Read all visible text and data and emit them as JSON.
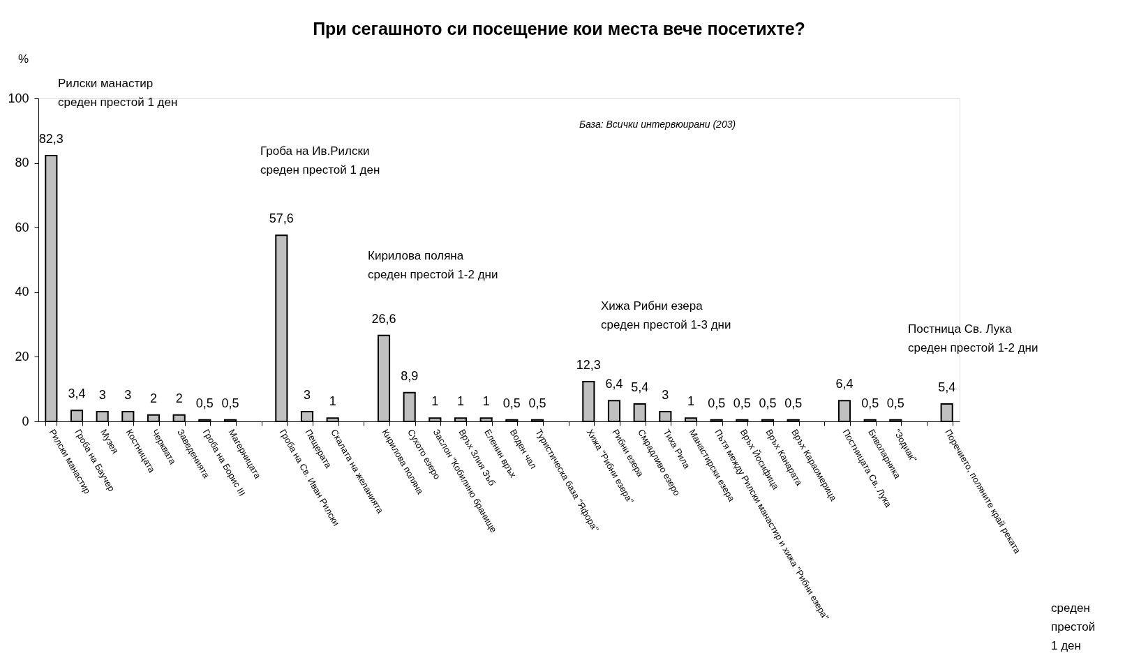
{
  "chart_data": {
    "type": "bar",
    "title": "При сегашното си посещение кои места вече посетихте?",
    "ylabel": "%",
    "categories": [
      "Рилски манастир",
      "Гроба на Баучер",
      "Музея",
      "Костницата",
      "Черквата",
      "Заведенията",
      "Гроба на Борис III",
      "Магерницата",
      null,
      "Гроба на Св. Иван Рилски",
      "Пещерата",
      "Скалата на желанията",
      null,
      "Кирилова поляна",
      "Сухото езеро",
      "Заслон \"Кобилино бранище",
      "Връх Злия Зъб",
      "Еленин връх",
      "Воден чал",
      "Туристическа база \"Яфора\"",
      null,
      "Хижа \"Рибни езера\"",
      "Рибни езера",
      "Смрадливо езеро",
      "Тиха Рила",
      "Манастирски езера",
      "Пътя между Рилски манастир и хижа \"Рибни езера\"",
      "Връх Йосифица",
      "Връх Канарата",
      "Връх Караомерица",
      null,
      "Постницата Св. Лука",
      "Биволарника",
      "\"Зодиак\"",
      null,
      "Поречието, поляните край реката"
    ],
    "values": [
      82.3,
      3.4,
      3,
      3,
      2,
      2,
      0.5,
      0.5,
      null,
      57.6,
      3,
      1,
      null,
      26.6,
      8.9,
      1,
      1,
      1,
      0.5,
      0.5,
      null,
      12.3,
      6.4,
      5.4,
      3,
      1,
      0.5,
      0.5,
      0.5,
      0.5,
      null,
      6.4,
      0.5,
      0.5,
      null,
      5.4
    ],
    "value_labels": [
      "82,3",
      "3,4",
      "3",
      "3",
      "2",
      "2",
      "0,5",
      "0,5",
      null,
      "57,6",
      "3",
      "1",
      null,
      "26,6",
      "8,9",
      "1",
      "1",
      "1",
      "0,5",
      "0,5",
      null,
      "12,3",
      "6,4",
      "5,4",
      "3",
      "1",
      "0,5",
      "0,5",
      "0,5",
      "0,5",
      null,
      "6,4",
      "0,5",
      "0,5",
      null,
      "5,4"
    ],
    "color": "#c0c0c0",
    "ylim": [
      0,
      100
    ],
    "yticks": [
      0,
      20,
      40,
      60,
      80,
      100
    ],
    "grid": false,
    "annotations": [
      "Рилски манастир\nсреден престой 1 ден",
      "Гроба на Ив.Рилски\nсреден престой 1 ден",
      "Кирилова поляна\nсреден престой 1-2 дни",
      "Хижа Рибни езера\nсреден престой 1-3 дни",
      "Постница Св. Лука\nсреден престой 1-2 дни",
      "База: Всички интервюирани (203)",
      "среден\nпрестой\n1 ден"
    ]
  }
}
